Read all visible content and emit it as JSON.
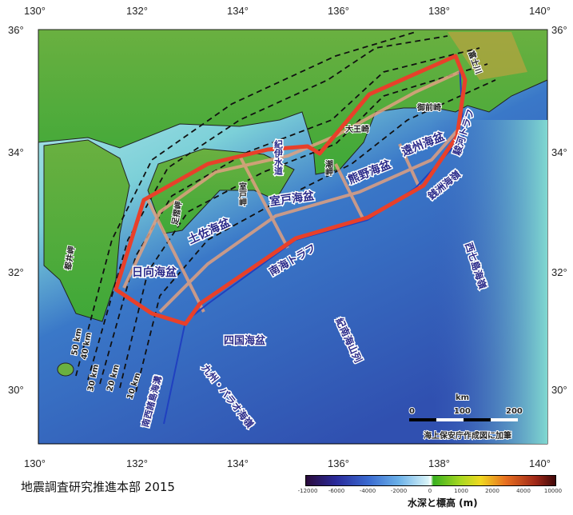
{
  "axes": {
    "lon_ticks": [
      "130°",
      "132°",
      "134°",
      "136°",
      "138°",
      "140°"
    ],
    "lat_ticks": [
      "36°",
      "34°",
      "32°",
      "30°"
    ]
  },
  "regions": {
    "basins": [
      "日向海盆",
      "土佐海盆",
      "室戸海盆",
      "熊野海盆",
      "遠州海盆",
      "四国海盆"
    ],
    "features": [
      "南海トラフ",
      "駿河トラフ",
      "銭洲海嶺",
      "西七島海嶺",
      "紀南海山列",
      "九州・パラオ海嶺",
      "南西諸島海溝",
      "紀伊水道",
      "富士川"
    ],
    "capes": [
      "都井岬",
      "足摺岬",
      "室戸岬",
      "潮岬",
      "大王崎",
      "御前崎"
    ]
  },
  "depth_contours": [
    "50 km",
    "40 km",
    "30 km",
    "20 km",
    "10 km"
  ],
  "scale_bar": {
    "unit": "km",
    "labels": [
      "0",
      "100",
      "200"
    ]
  },
  "source_note": "海上保安庁作成図に加筆",
  "credit": "地震調査研究推進本部 2015",
  "colorbar": {
    "title": "水深と標高 (m)",
    "labels": [
      "-12000",
      "-6000",
      "-4000",
      "-2000",
      "0",
      "1000",
      "2000",
      "4000",
      "10000"
    ]
  },
  "colors": {
    "source_region": "#e8402a",
    "segments": "#e0a080",
    "trough": "#2040c0",
    "land": "#4aa83a",
    "deep_sea": "#3a60c0",
    "shallow_sea": "#a8e8e8"
  }
}
